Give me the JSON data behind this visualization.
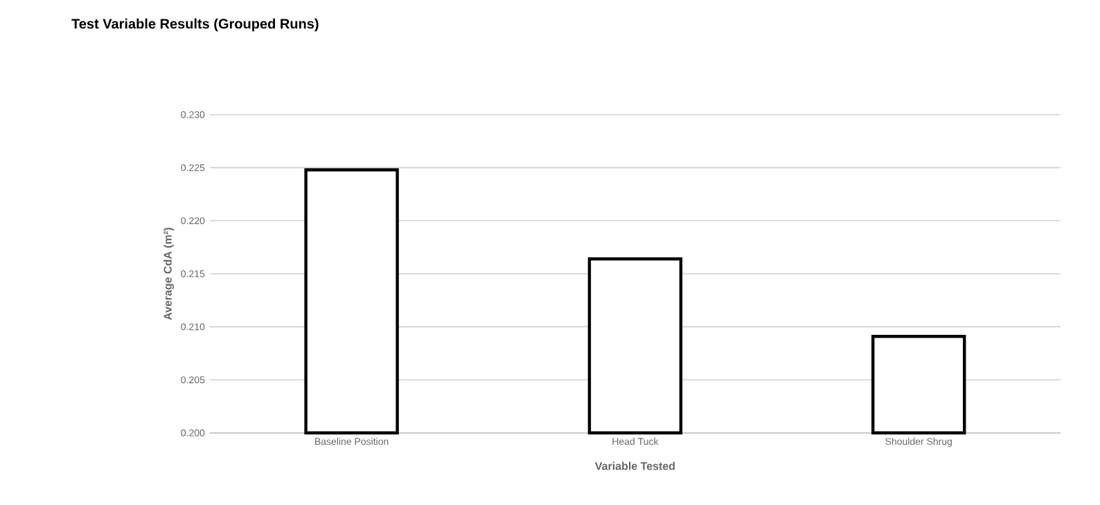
{
  "chart_data": {
    "type": "bar",
    "title": "Test Variable Results (Grouped Runs)",
    "xlabel": "Variable Tested",
    "ylabel": "Average CdA (m²)",
    "categories": [
      "Baseline Position",
      "Head Tuck",
      "Shoulder Shrug"
    ],
    "values": [
      0.2248,
      0.2164,
      0.2091
    ],
    "color": "#ffffff",
    "ylim": [
      0.2,
      0.23
    ],
    "yticks": [
      {
        "value": 0.2,
        "label": "0.200"
      },
      {
        "value": 0.205,
        "label": "0.205"
      },
      {
        "value": 0.21,
        "label": "0.210"
      },
      {
        "value": 0.215,
        "label": "0.215"
      },
      {
        "value": 0.22,
        "label": "0.220"
      },
      {
        "value": 0.225,
        "label": "0.225"
      },
      {
        "value": 0.23,
        "label": "0.230"
      }
    ],
    "grid": "y"
  }
}
